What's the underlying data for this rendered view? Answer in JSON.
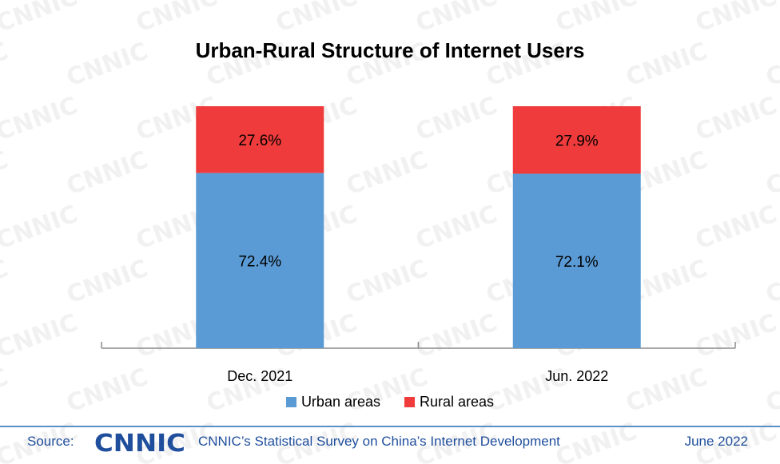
{
  "chart_data": {
    "type": "bar",
    "stacked": true,
    "title": "Urban-Rural Structure of Internet Users",
    "categories": [
      "Dec. 2021",
      "Jun. 2022"
    ],
    "series": [
      {
        "name": "Urban areas",
        "values": [
          72.4,
          72.1
        ],
        "labels": [
          "72.4%",
          "72.1%"
        ],
        "color": "#5b9bd5"
      },
      {
        "name": "Rural areas",
        "values": [
          27.6,
          27.9
        ],
        "labels": [
          "27.6%",
          "27.9%"
        ],
        "color": "#ef3b3b"
      }
    ],
    "ylim": [
      0,
      100
    ],
    "grid": false,
    "legend_position": "bottom"
  },
  "footer": {
    "source_label": "Source:",
    "logo_text": "CNNIC",
    "source_text": "CNNIC’s Statistical Survey on China’s Internet Development",
    "date": "June 2022"
  },
  "watermark_text": "CNNIC",
  "colors": {
    "footer_line": "#5b8fc9",
    "footer_text": "#1f4e9c",
    "watermark": "#e6e6e6"
  }
}
